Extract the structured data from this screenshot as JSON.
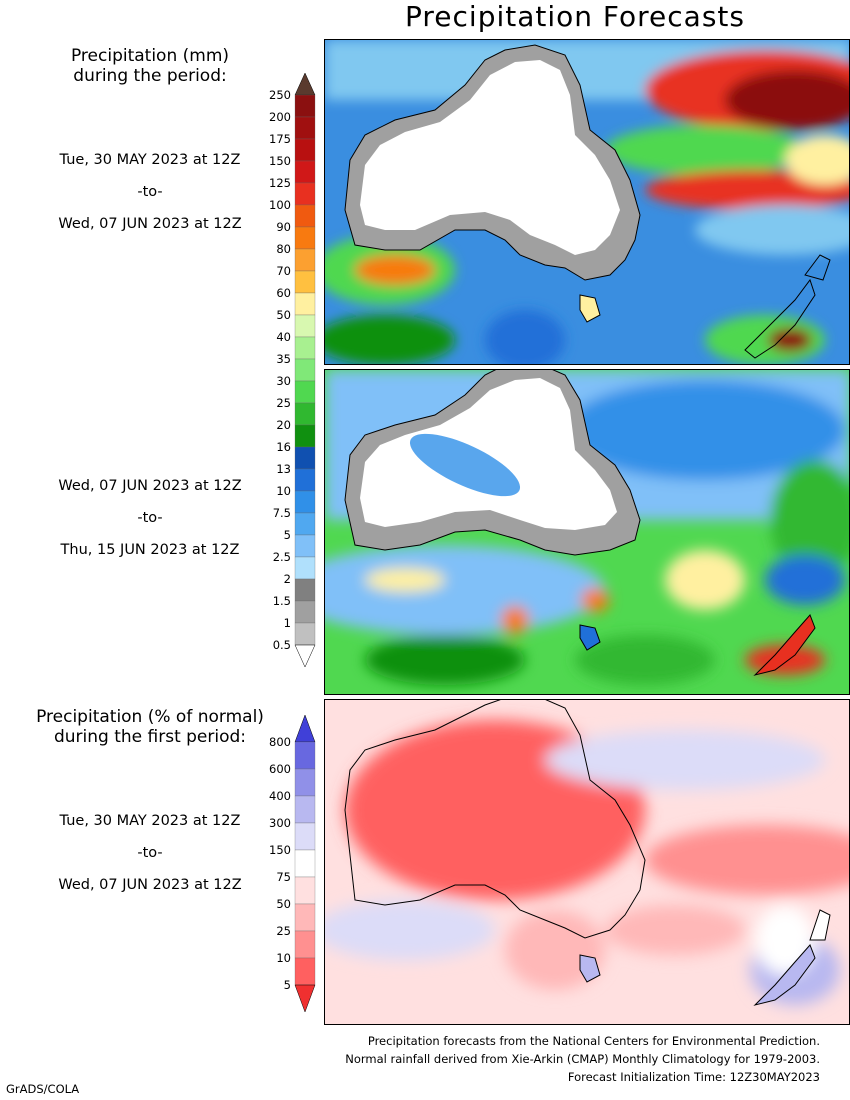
{
  "title": "Precipitation Forecasts",
  "amount_header": {
    "line1": "Precipitation (mm)",
    "line2": "during the period:"
  },
  "periods": [
    {
      "start": "Tue, 30 MAY 2023 at 12Z",
      "sep": "-to-",
      "end": "Wed, 07 JUN 2023 at 12Z"
    },
    {
      "start": "Wed, 07 JUN 2023 at 12Z",
      "sep": "-to-",
      "end": "Thu, 15 JUN 2023 at 12Z"
    },
    {
      "start": "Tue, 30 MAY 2023 at 12Z",
      "sep": "-to-",
      "end": "Wed, 07 JUN 2023 at 12Z"
    }
  ],
  "anomaly_header": {
    "line1": "Precipitation (% of normal)",
    "line2": "during the first period:"
  },
  "amount_scale": {
    "labels": [
      "250",
      "200",
      "175",
      "150",
      "125",
      "100",
      "90",
      "80",
      "70",
      "60",
      "50",
      "40",
      "35",
      "30",
      "25",
      "20",
      "16",
      "13",
      "10",
      "7.5",
      "5",
      "2.5",
      "2",
      "1.5",
      "1",
      "0.5"
    ],
    "colors": [
      "#5a3a2e",
      "#8b1010",
      "#a01010",
      "#b81010",
      "#d01818",
      "#e83020",
      "#f05a10",
      "#f87a10",
      "#fca030",
      "#ffc040",
      "#fff0a0",
      "#d8f8b0",
      "#a8f090",
      "#80e878",
      "#50d850",
      "#30b830",
      "#109010",
      "#1050b0",
      "#2070d8",
      "#3090e8",
      "#50a8f0",
      "#80c0f8",
      "#b0e0fc",
      "#808080",
      "#a0a0a0",
      "#c0c0c0",
      "#ffffff"
    ]
  },
  "anomaly_scale": {
    "labels": [
      "800",
      "600",
      "400",
      "300",
      "150",
      "75",
      "50",
      "25",
      "10",
      "5"
    ],
    "colors": [
      "#4040d8",
      "#6868e0",
      "#9090e8",
      "#b8b8f0",
      "#dcdcf8",
      "#ffffff",
      "#ffe0e0",
      "#ffb8b8",
      "#ff9090",
      "#ff6060",
      "#f03030"
    ]
  },
  "footer": {
    "line1": "Precipitation forecasts from the National Centers for Environmental Prediction.",
    "line2": "Normal rainfall derived from Xie-Arkin (CMAP) Monthly Climatology for 1979-2003.",
    "line3": "Forecast Initialization Time: 12Z30MAY2023"
  },
  "credit": "GrADS/COLA"
}
